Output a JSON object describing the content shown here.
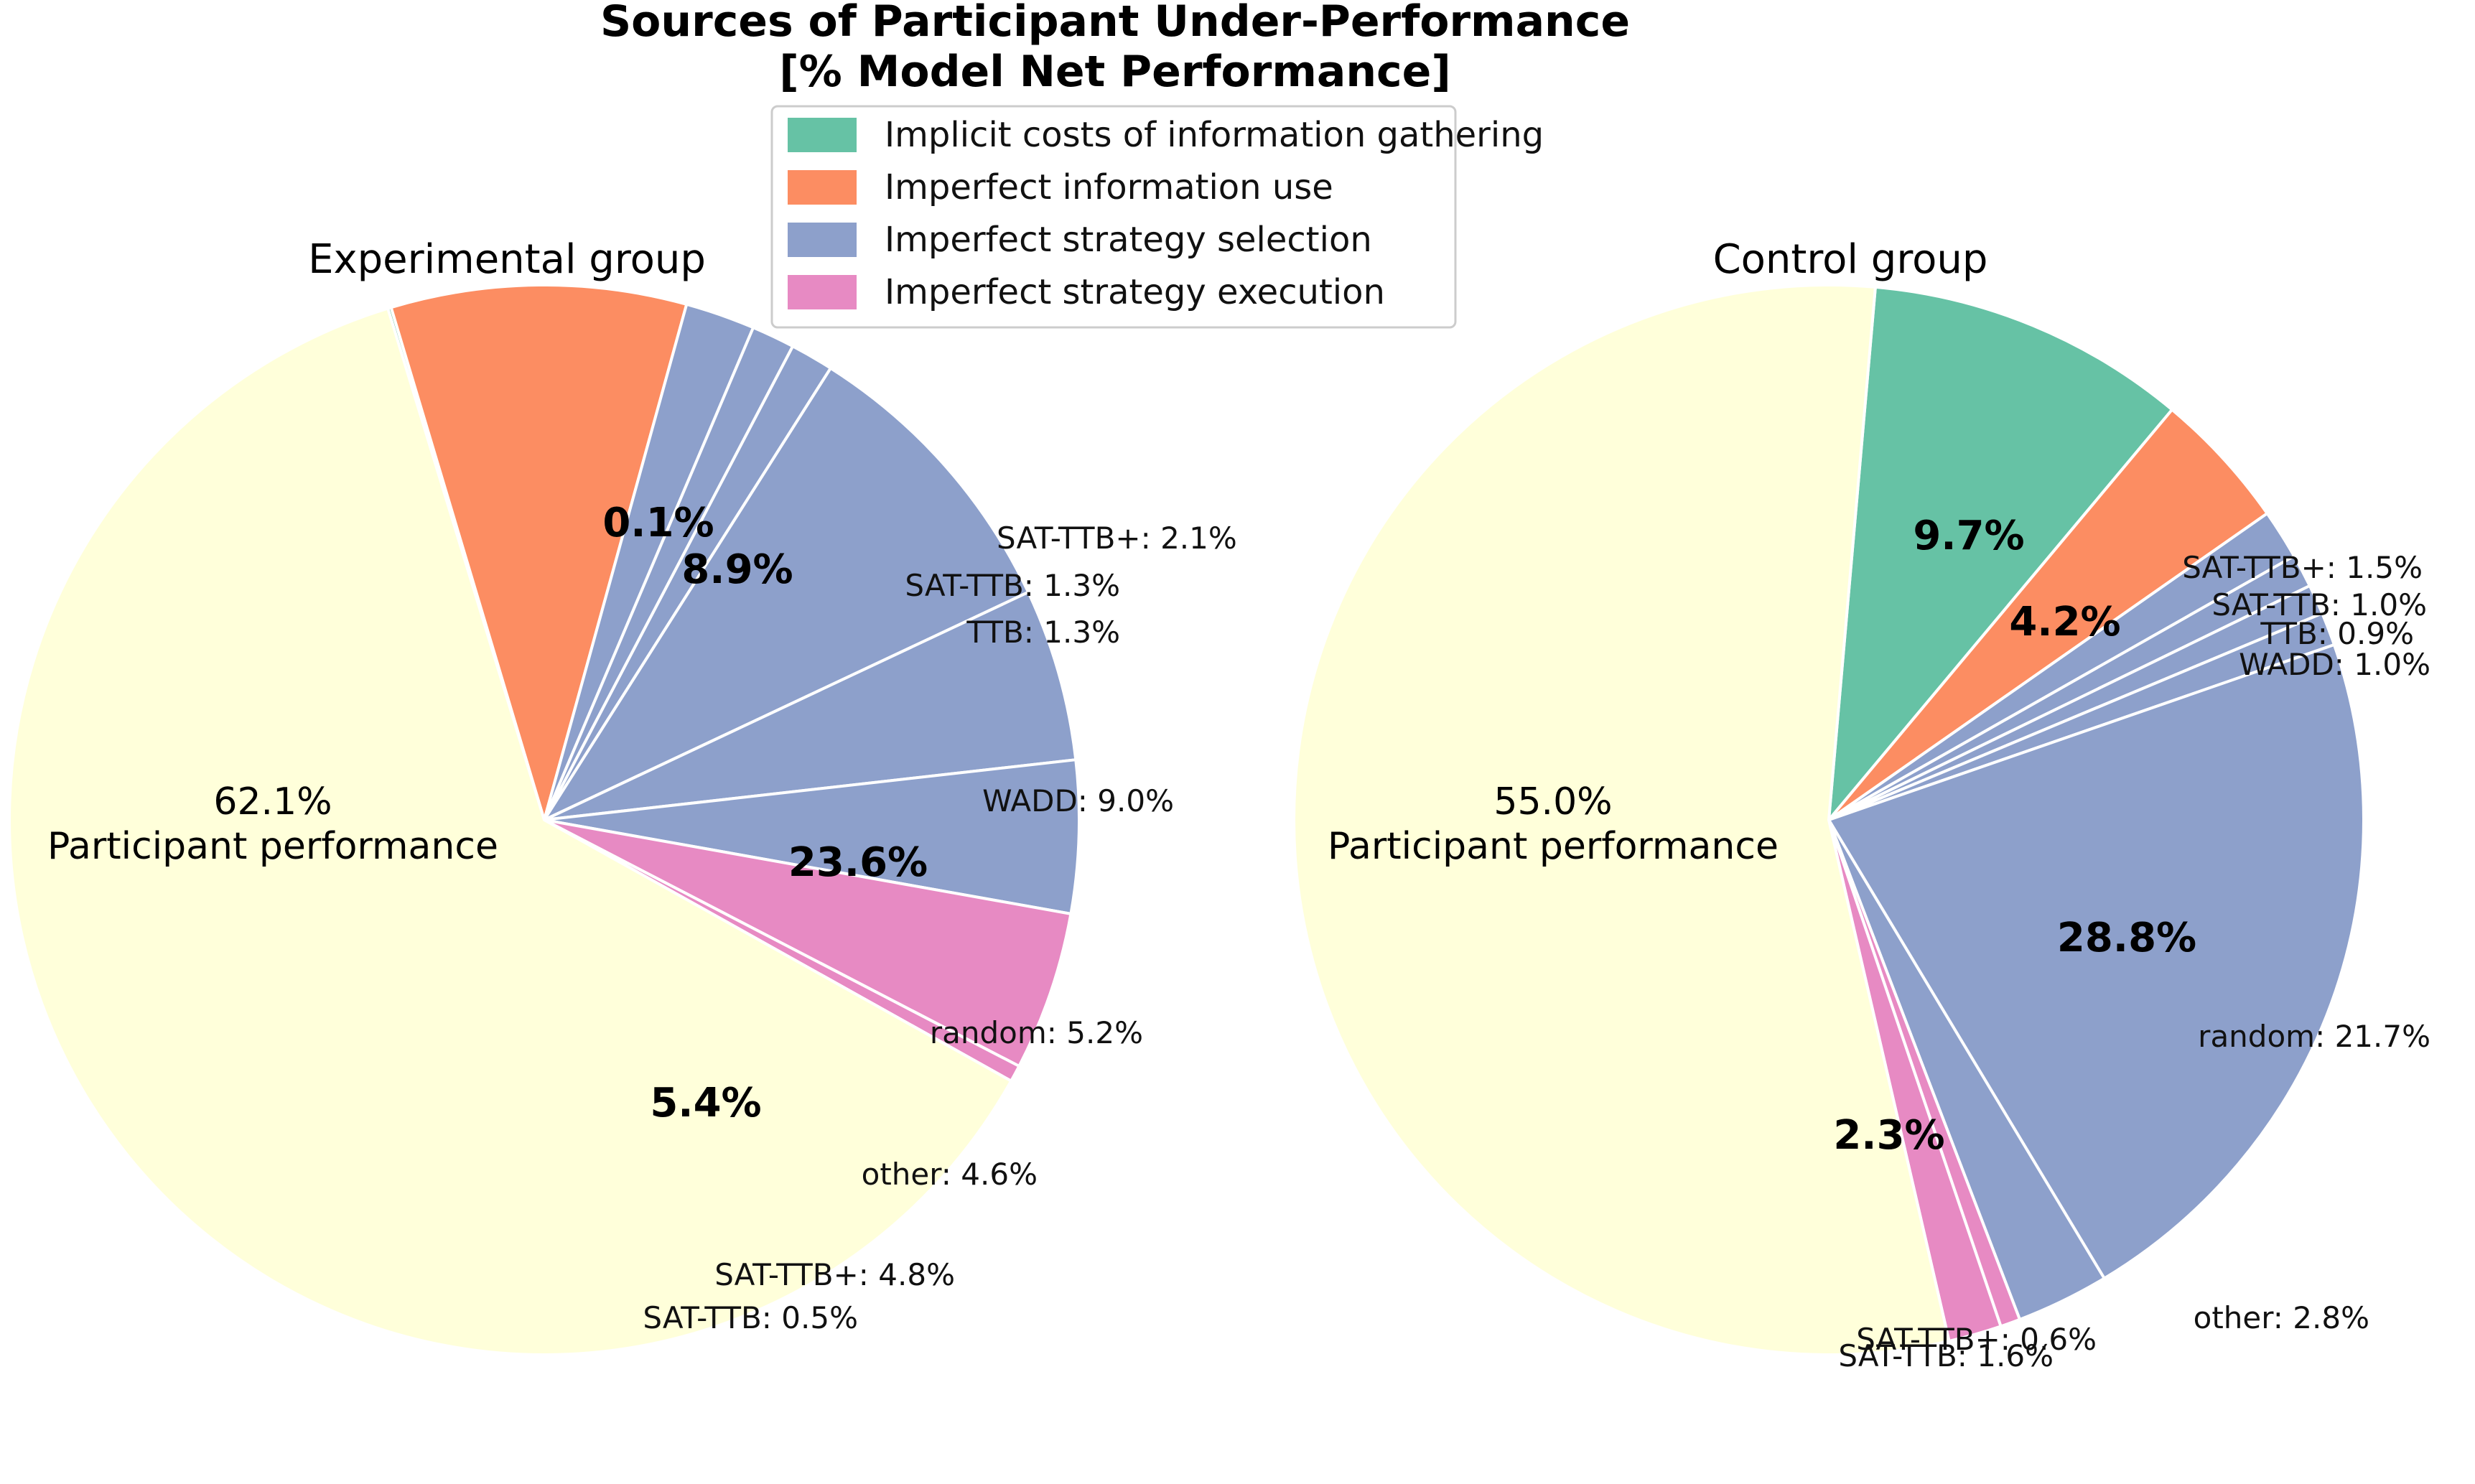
{
  "chart_data": {
    "type": "pie",
    "title": "Sources of Participant Under-Performance",
    "title_line2": "[% Model Net Performance]",
    "legend": {
      "placement": "top-center",
      "entries": [
        {
          "name": "Implicit costs of information gathering",
          "color": "#66c2a5"
        },
        {
          "name": "Imperfect information use",
          "color": "#fc8d62"
        },
        {
          "name": "Imperfect strategy selection",
          "color": "#8da0cb"
        },
        {
          "name": "Imperfect strategy execution",
          "color": "#e78ac3"
        }
      ]
    },
    "colors": {
      "participant": "#ffffda",
      "info_gathering": "#66c2a5",
      "info_use": "#fc8d62",
      "strategy_selection": "#8da0cb",
      "strategy_execution": "#e78ac3",
      "edge": "#ffffff"
    },
    "pies": [
      {
        "name": "Experimental group",
        "start_angle_deg": 107,
        "participant": {
          "value": 62.1,
          "pct_label": "62.1%",
          "label": "Participant performance"
        },
        "categories": [
          {
            "key": "info_gathering",
            "total": 0.1,
            "pct_label": "0.1%",
            "subslices": [
              {
                "label": "",
                "value": 0.1
              }
            ]
          },
          {
            "key": "info_use",
            "total": 8.9,
            "pct_label": "8.9%",
            "subslices": [
              {
                "label": "",
                "value": 8.9
              }
            ]
          },
          {
            "key": "strategy_selection",
            "total": 23.6,
            "pct_label": "23.6%",
            "subslices": [
              {
                "label": "SAT-TTB+: 2.1%",
                "value": 2.1
              },
              {
                "label": "SAT-TTB: 1.3%",
                "value": 1.3
              },
              {
                "label": "TTB: 1.3%",
                "value": 1.3
              },
              {
                "label": "WADD: 9.0%",
                "value": 9.0
              },
              {
                "label": "random: 5.2%",
                "value": 5.2
              },
              {
                "label": "other: 4.6%",
                "value": 4.6
              }
            ]
          },
          {
            "key": "strategy_execution",
            "total": 5.4,
            "pct_label": "5.4%",
            "subslices": [
              {
                "label": "SAT-TTB+: 4.8%",
                "value": 4.8
              },
              {
                "label": "SAT-TTB: 0.5%",
                "value": 0.5
              }
            ]
          }
        ]
      },
      {
        "name": "Control group",
        "start_angle_deg": 85,
        "participant": {
          "value": 55.0,
          "pct_label": "55.0%",
          "label": "Participant performance"
        },
        "categories": [
          {
            "key": "info_gathering",
            "total": 9.7,
            "pct_label": "9.7%",
            "subslices": [
              {
                "label": "",
                "value": 9.7
              }
            ]
          },
          {
            "key": "info_use",
            "total": 4.2,
            "pct_label": "4.2%",
            "subslices": [
              {
                "label": "",
                "value": 4.2
              }
            ]
          },
          {
            "key": "strategy_selection",
            "total": 28.8,
            "pct_label": "28.8%",
            "subslices": [
              {
                "label": "SAT-TTB+: 1.5%",
                "value": 1.5
              },
              {
                "label": "SAT-TTB: 1.0%",
                "value": 1.0
              },
              {
                "label": "TTB: 0.9%",
                "value": 0.9
              },
              {
                "label": "WADD: 1.0%",
                "value": 1.0
              },
              {
                "label": "random: 21.7%",
                "value": 21.7
              },
              {
                "label": "other: 2.8%",
                "value": 2.8
              }
            ]
          },
          {
            "key": "strategy_execution",
            "total": 2.3,
            "pct_label": "2.3%",
            "subslices": [
              {
                "label": "SAT-TTB+: 0.6%",
                "value": 0.6
              },
              {
                "label": "SAT-TTB: 1.6%",
                "value": 1.6
              }
            ]
          }
        ]
      }
    ]
  }
}
